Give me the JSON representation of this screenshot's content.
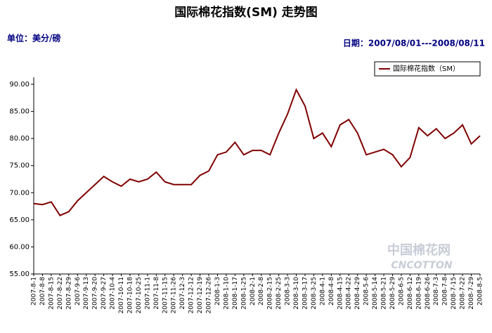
{
  "chart_data": {
    "type": "line",
    "title": "国际棉花指数(SM) 走势图",
    "subtitle": "单位：美分/磅",
    "date_range": "日期：2007/08/01---2008/08/11",
    "watermark": [
      "中国棉花网",
      "CNCOTTON"
    ],
    "categories": [
      "2007-8-1",
      "2007-8-8",
      "2007-8-15",
      "2007-8-22",
      "2007-8-29",
      "2007-9-6",
      "2007-9-13",
      "2007-9-20",
      "2007-9-27",
      "2007-10-4",
      "2007-10-11",
      "2007-10-18",
      "2007-10-25",
      "2007-11-1",
      "2007-11-8",
      "2007-11-15",
      "2007-11-26",
      "2007-12-3",
      "2007-12-12",
      "2007-12-19",
      "2007-12-26",
      "2008-1-3",
      "2008-1-10",
      "2008-1-17",
      "2008-1-25",
      "2008-2-1",
      "2008-2-8",
      "2008-2-15",
      "2008-2-25",
      "2008-3-3",
      "2008-3-10",
      "2008-3-17",
      "2008-3-25",
      "2008-4-1",
      "2008-4-8",
      "2008-4-15",
      "2008-4-22",
      "2008-4-29",
      "2008-5-6",
      "2008-5-14",
      "2008-5-21",
      "2008-5-29",
      "2008-6-5",
      "2008-6-12",
      "2008-6-19",
      "2008-6-26",
      "2008-7-3",
      "2008-7-8",
      "2008-7-15",
      "2008-7-22",
      "2008-7-29",
      "2008-8-5"
    ],
    "series": [
      {
        "name": "国际棉花指数（SM）",
        "color": "#800000",
        "values": [
          68,
          67.8,
          68.3,
          65.8,
          66.5,
          68.5,
          70,
          71.5,
          73,
          72,
          71.2,
          72.5,
          72,
          72.5,
          73.8,
          72,
          71.5,
          71.5,
          71.5,
          73.2,
          74,
          77,
          77.5,
          79.3,
          77,
          77.8,
          77.8,
          77,
          81,
          84.5,
          89,
          86,
          80,
          81,
          78.5,
          82.5,
          83.5,
          81,
          77,
          77.5,
          78,
          77,
          74.8,
          76.5,
          82,
          80.5,
          81.8,
          80,
          81,
          82.5,
          79,
          80.5
        ]
      }
    ],
    "ylim": [
      55,
      90
    ],
    "yticks": [
      {
        "value": 55,
        "label": "55.00"
      },
      {
        "value": 60,
        "label": "60.00"
      },
      {
        "value": 65,
        "label": "65.00"
      },
      {
        "value": 70,
        "label": "70.00"
      },
      {
        "value": 75,
        "label": "75.00"
      },
      {
        "value": 80,
        "label": "80.00"
      },
      {
        "value": 85,
        "label": "85.00"
      },
      {
        "value": 90,
        "label": "90.00"
      }
    ],
    "grid": false,
    "legend": "top-right"
  }
}
